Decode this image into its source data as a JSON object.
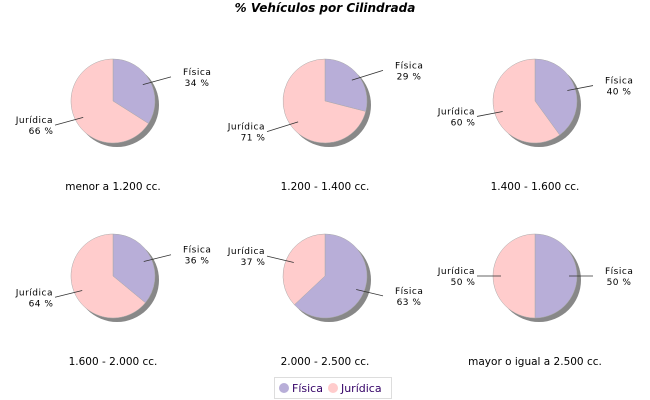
{
  "chart_data": {
    "type": "pie",
    "title": "% Vehículos por Cilindrada",
    "legend": {
      "placement": "bottom",
      "entries": [
        "Física",
        "Jurídica"
      ]
    },
    "colors": {
      "Física": "#b8aed8",
      "Jurídica": "#ffcccc"
    },
    "charts": [
      {
        "label": "menor a 1.200 cc.",
        "slices": [
          {
            "name": "Física",
            "value": 34
          },
          {
            "name": "Jurídica",
            "value": 66
          }
        ]
      },
      {
        "label": "1.200 - 1.400 cc.",
        "slices": [
          {
            "name": "Física",
            "value": 29
          },
          {
            "name": "Jurídica",
            "value": 71
          }
        ]
      },
      {
        "label": "1.400 - 1.600 cc.",
        "slices": [
          {
            "name": "Física",
            "value": 40
          },
          {
            "name": "Jurídica",
            "value": 60
          }
        ]
      },
      {
        "label": "1.600 - 2.000 cc.",
        "slices": [
          {
            "name": "Física",
            "value": 36
          },
          {
            "name": "Jurídica",
            "value": 64
          }
        ]
      },
      {
        "label": "2.000 - 2.500 cc.",
        "slices": [
          {
            "name": "Física",
            "value": 63
          },
          {
            "name": "Jurídica",
            "value": 37
          }
        ]
      },
      {
        "label": "mayor o igual a 2.500 cc.",
        "slices": [
          {
            "name": "Física",
            "value": 50
          },
          {
            "name": "Jurídica",
            "value": 50
          }
        ]
      }
    ]
  }
}
